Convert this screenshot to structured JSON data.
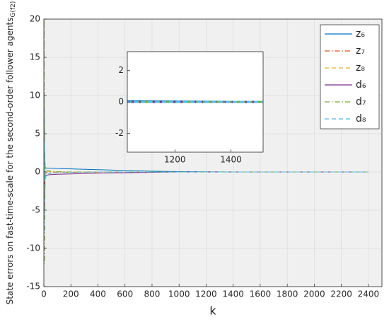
{
  "chart_data": {
    "type": "line",
    "x_label": "k",
    "y_label": "State errors on fast-time-scale for the second-order follower agents",
    "y_label_subscript": "G(f2)",
    "x": [
      0,
      2,
      5,
      10,
      20,
      50,
      100,
      200,
      400,
      600,
      800,
      1000,
      1400,
      2000,
      2400
    ],
    "series": [
      {
        "name": "z₆",
        "color": "#0072bd",
        "style": "solid",
        "values": [
          0,
          10,
          3,
          0.5,
          0.5,
          0.5,
          0.45,
          0.4,
          0.3,
          0.2,
          0.1,
          0.05,
          0,
          0,
          0
        ]
      },
      {
        "name": "z₇",
        "color": "#d95319",
        "style": "dashdot",
        "values": [
          0,
          6,
          -5,
          -0.2,
          -0.1,
          -0.1,
          -0.1,
          -0.05,
          -0.02,
          0,
          0,
          0,
          0,
          0,
          0
        ]
      },
      {
        "name": "z₈",
        "color": "#edb120",
        "style": "dashed",
        "values": [
          0,
          -4,
          2,
          0.2,
          0.1,
          0.05,
          0,
          0,
          0,
          0,
          0,
          0,
          0,
          0,
          0
        ]
      },
      {
        "name": "d₆",
        "color": "#7e2f8e",
        "style": "solid",
        "values": [
          0,
          -6,
          -1,
          -0.5,
          -0.4,
          -0.35,
          -0.3,
          -0.25,
          -0.15,
          -0.1,
          -0.05,
          0,
          0,
          0,
          0
        ]
      },
      {
        "name": "d₇",
        "color": "#77ac30",
        "style": "dashdot",
        "values": [
          0,
          20,
          -12,
          1,
          0.2,
          0.1,
          0.05,
          0,
          0,
          0,
          0,
          0,
          0,
          0,
          0
        ]
      },
      {
        "name": "d₈",
        "color": "#4dbeee",
        "style": "dashed",
        "values": [
          0,
          -8,
          4,
          -1,
          -0.3,
          -0.2,
          -0.1,
          -0.05,
          0,
          0,
          0,
          0,
          0,
          0,
          0
        ]
      }
    ],
    "xlim": [
      0,
      2500
    ],
    "xticks": [
      0,
      200,
      400,
      600,
      800,
      1000,
      1200,
      1400,
      1600,
      1800,
      2000,
      2200,
      2400
    ],
    "ylim": [
      -15,
      20
    ],
    "yticks": [
      -15,
      -10,
      -5,
      0,
      5,
      10,
      15,
      20
    ],
    "grid": true,
    "legend": "top-right",
    "inset": {
      "xlim": [
        1030,
        1515
      ],
      "xticks": [
        1200,
        1400
      ],
      "ylim": [
        -3.2,
        3.2
      ],
      "yticks": [
        -2,
        0,
        2
      ]
    }
  }
}
